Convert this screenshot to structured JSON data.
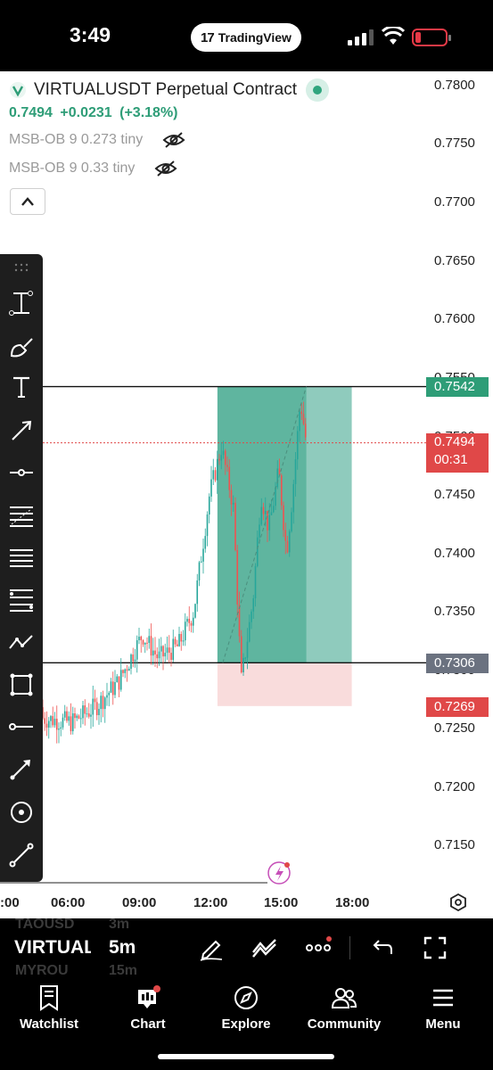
{
  "status_bar": {
    "time": "3:49",
    "app_pill": "TradingView"
  },
  "symbol": {
    "title": "VIRTUALUSDT Perpetual Contract",
    "last_price": "0.7494",
    "change": "+0.0231",
    "change_pct": "(+3.18%)"
  },
  "indicators": [
    {
      "label": "MSB-OB 9 0.273 tiny"
    },
    {
      "label": "MSB-OB 9 0.33 tiny"
    }
  ],
  "price_axis": [
    "0.7800",
    "0.7750",
    "0.7700",
    "0.7650",
    "0.7600",
    "0.7550",
    "0.7500",
    "0.7450",
    "0.7400",
    "0.7350",
    "0.7300",
    "0.7250",
    "0.7200",
    "0.7150"
  ],
  "price_tags": {
    "target": "0.7542",
    "current": "0.7494",
    "countdown": "00:31",
    "entry": "0.7306",
    "stop": "0.7269"
  },
  "time_axis": [
    ":00",
    "06:00",
    "09:00",
    "12:00",
    "15:00",
    "18:00"
  ],
  "colors": {
    "up": "#26a69a",
    "down": "#ef5350",
    "target_zone": "#8fcbbd",
    "stop_zone": "#f9dcdc",
    "accent_green": "#2e9d77"
  },
  "chart_data": {
    "type": "candlestick",
    "symbol": "VIRTUALUSDT",
    "interval": "5m",
    "ylim": [
      0.712,
      0.782
    ],
    "x_ticks": [
      "06:00",
      "09:00",
      "12:00",
      "15:00",
      "18:00"
    ],
    "close_path": [
      [
        "03:00",
        0.7268
      ],
      [
        "04:00",
        0.7262
      ],
      [
        "05:00",
        0.7258
      ],
      [
        "06:00",
        0.7255
      ],
      [
        "07:00",
        0.7268
      ],
      [
        "08:00",
        0.729
      ],
      [
        "09:00",
        0.733
      ],
      [
        "09:40",
        0.731
      ],
      [
        "10:30",
        0.732
      ],
      [
        "11:10",
        0.735
      ],
      [
        "11:50",
        0.745
      ],
      [
        "12:20",
        0.749
      ],
      [
        "12:50",
        0.744
      ],
      [
        "13:10",
        0.729
      ],
      [
        "13:40",
        0.736
      ],
      [
        "14:00",
        0.745
      ],
      [
        "14:20",
        0.742
      ],
      [
        "14:45",
        0.747
      ],
      [
        "15:05",
        0.74
      ],
      [
        "15:20",
        0.745
      ],
      [
        "15:40",
        0.753
      ],
      [
        "15:55",
        0.7494
      ]
    ],
    "position": {
      "side": "long",
      "entry": 0.7306,
      "target": 0.7542,
      "stop": 0.7269,
      "start_time": "12:10",
      "end_time": "17:50"
    }
  },
  "bottom_bar": {
    "symbol": "VIRTUALUSDT",
    "interval": "5m",
    "ghost_items": [
      "TAOUSD",
      "3m",
      "MYROU",
      "15m"
    ]
  },
  "tabs": [
    {
      "label": "Watchlist",
      "icon": "watchlist-icon"
    },
    {
      "label": "Chart",
      "icon": "chart-icon"
    },
    {
      "label": "Explore",
      "icon": "compass-icon"
    },
    {
      "label": "Community",
      "icon": "people-icon"
    },
    {
      "label": "Menu",
      "icon": "menu-icon"
    }
  ]
}
